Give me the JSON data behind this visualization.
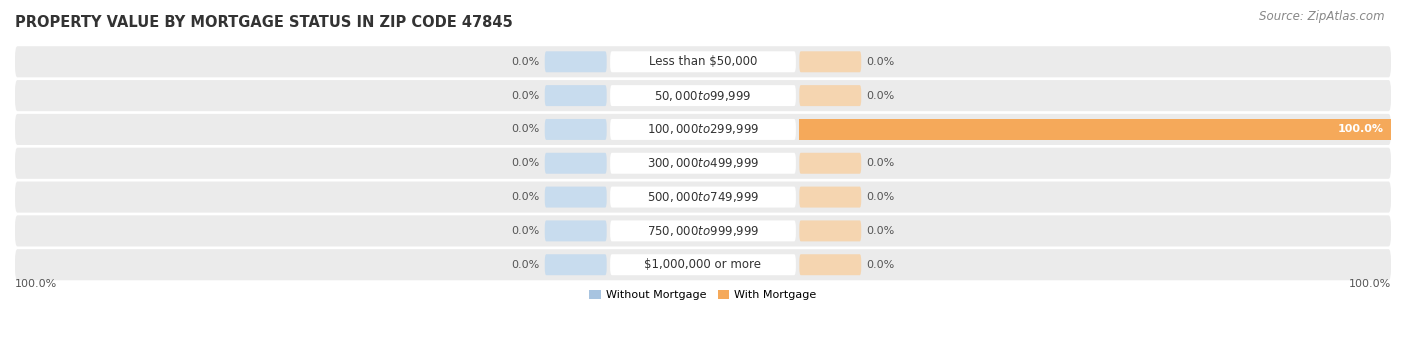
{
  "title": "PROPERTY VALUE BY MORTGAGE STATUS IN ZIP CODE 47845",
  "source": "Source: ZipAtlas.com",
  "categories": [
    "Less than $50,000",
    "$50,000 to $99,999",
    "$100,000 to $299,999",
    "$300,000 to $499,999",
    "$500,000 to $749,999",
    "$750,000 to $999,999",
    "$1,000,000 or more"
  ],
  "without_mortgage": [
    0.0,
    0.0,
    0.0,
    0.0,
    0.0,
    0.0,
    0.0
  ],
  "with_mortgage": [
    0.0,
    0.0,
    100.0,
    0.0,
    0.0,
    0.0,
    0.0
  ],
  "without_mortgage_color": "#a8c4e0",
  "with_mortgage_color": "#f5a95a",
  "without_mortgage_bg": "#c8dcee",
  "with_mortgage_bg": "#f5d5b0",
  "row_bg_light": "#ebebeb",
  "row_bg_dark": "#e0e0e0",
  "label_color": "#555555",
  "category_bg": "#ffffff",
  "legend_without": "Without Mortgage",
  "legend_with": "With Mortgage",
  "title_fontsize": 10.5,
  "source_fontsize": 8.5,
  "label_fontsize": 8,
  "category_fontsize": 8.5,
  "bar_max": 100,
  "bottom_left_label": "100.0%",
  "bottom_right_label": "100.0%"
}
